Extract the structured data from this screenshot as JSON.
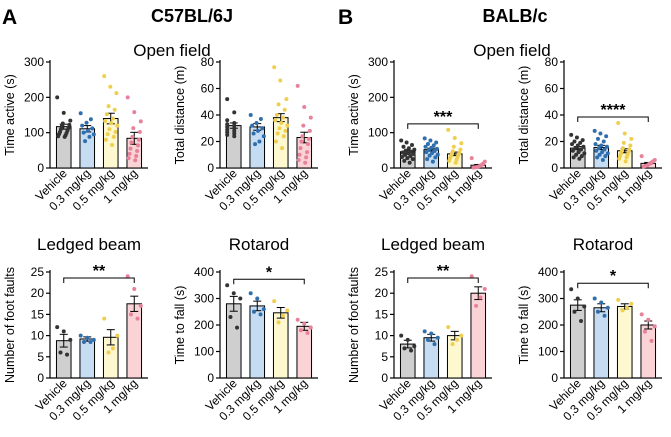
{
  "figure": {
    "panels": [
      {
        "letter": "A",
        "strain": "C57BL/6J"
      },
      {
        "letter": "B",
        "strain": "BALB/c"
      }
    ],
    "groups": [
      "Vehicle",
      "0.3 mg/kg",
      "0.5 mg/kg",
      "1 mg/kg"
    ],
    "group_colors": {
      "fill": [
        "#cfcfcf",
        "#c6dcf3",
        "#fdf8cf",
        "#f9d3d6"
      ],
      "dot": [
        "#333333",
        "#2f6fad",
        "#f0cf4f",
        "#e8829a"
      ]
    },
    "section_titles": {
      "open_field": "Open field"
    }
  },
  "chart_data": [
    {
      "id": "A-time-active",
      "type": "bar",
      "panel": "A",
      "title": "",
      "categories": [
        "Vehicle",
        "0.3 mg/kg",
        "0.5 mg/kg",
        "1 mg/kg"
      ],
      "values": [
        117,
        111,
        140,
        84
      ],
      "sem": [
        7,
        9,
        15,
        17
      ],
      "ylabel": "Time active (s)",
      "ylim": [
        0,
        300
      ],
      "yticks": [
        0,
        100,
        200,
        300
      ],
      "points": [
        [
          200,
          156,
          134,
          126,
          122,
          118,
          113,
          110,
          106,
          102,
          99,
          96,
          93,
          90,
          88
        ],
        [
          155,
          138,
          128,
          120,
          112,
          105,
          100,
          95,
          88,
          76
        ],
        [
          260,
          230,
          212,
          175,
          165,
          152,
          140,
          133,
          127,
          120,
          110,
          102,
          96,
          88,
          80,
          65
        ],
        [
          200,
          158,
          132,
          113,
          102,
          88,
          80,
          72,
          64,
          55,
          48,
          40,
          34,
          28,
          22
        ]
      ],
      "significance": null
    },
    {
      "id": "A-total-distance",
      "type": "bar",
      "panel": "A",
      "title": "",
      "categories": [
        "Vehicle",
        "0.3 mg/kg",
        "0.5 mg/kg",
        "1 mg/kg"
      ],
      "values": [
        32,
        31,
        38,
        23
      ],
      "sem": [
        2,
        2.5,
        3,
        4
      ],
      "ylabel": "Total distance (m)",
      "ylim": [
        0,
        80
      ],
      "yticks": [
        0,
        20,
        40,
        60,
        80
      ],
      "points": [
        [
          52,
          42,
          36,
          34,
          33,
          32,
          31,
          30,
          29,
          28,
          27,
          26,
          25,
          24
        ],
        [
          40,
          37,
          34,
          32,
          30,
          28,
          26,
          24,
          20,
          18
        ],
        [
          76,
          66,
          52,
          48,
          44,
          40,
          38,
          36,
          34,
          32,
          30,
          28,
          26,
          24,
          20,
          15
        ],
        [
          62,
          46,
          38,
          32,
          28,
          24,
          22,
          20,
          18,
          15,
          12,
          10,
          8,
          6,
          4
        ]
      ],
      "significance": null
    },
    {
      "id": "B-time-active",
      "type": "bar",
      "panel": "B",
      "title": "",
      "categories": [
        "Vehicle",
        "0.3 mg/kg",
        "0.5 mg/kg",
        "1 mg/kg"
      ],
      "values": [
        46,
        52,
        40,
        8
      ],
      "sem": [
        4,
        4,
        5,
        2
      ],
      "ylabel": "Time active (s)",
      "ylim": [
        0,
        300
      ],
      "yticks": [
        0,
        100,
        200,
        300
      ],
      "points": [
        [
          78,
          72,
          65,
          60,
          56,
          52,
          49,
          46,
          44,
          42,
          40,
          37,
          34,
          31,
          28,
          25,
          20,
          15
        ],
        [
          84,
          78,
          72,
          68,
          64,
          60,
          57,
          54,
          51,
          48,
          45,
          42,
          38,
          35,
          30,
          25,
          18
        ],
        [
          108,
          85,
          70,
          60,
          52,
          47,
          43,
          40,
          37,
          34,
          31,
          28,
          24,
          20,
          15
        ],
        [
          28,
          18,
          12,
          8,
          5,
          3,
          2,
          1
        ]
      ],
      "significance": {
        "from": 0,
        "to": 3,
        "label": "***"
      }
    },
    {
      "id": "B-total-distance",
      "type": "bar",
      "panel": "B",
      "title": "",
      "categories": [
        "Vehicle",
        "0.3 mg/kg",
        "0.5 mg/kg",
        "1 mg/kg"
      ],
      "values": [
        15,
        15.5,
        13,
        3.5
      ],
      "sem": [
        1.2,
        1.6,
        1.5,
        0.7
      ],
      "ylabel": "Total distance (m)",
      "ylim": [
        0,
        80
      ],
      "yticks": [
        0,
        20,
        40,
        60,
        80
      ],
      "points": [
        [
          25,
          23,
          21,
          20,
          19,
          18,
          17,
          16,
          15,
          14,
          13,
          12,
          11,
          10,
          9,
          8,
          7
        ],
        [
          28,
          26,
          24,
          22,
          20,
          18,
          17,
          16,
          15,
          14,
          13,
          12,
          11,
          10,
          9,
          8,
          6
        ],
        [
          34,
          26,
          22,
          19,
          17,
          15,
          14,
          13,
          12,
          11,
          10,
          9,
          8,
          7,
          5
        ],
        [
          9,
          6,
          5,
          4,
          3,
          2,
          1.5,
          1
        ]
      ],
      "significance": {
        "from": 0,
        "to": 3,
        "label": "****"
      }
    },
    {
      "id": "A-ledged-beam",
      "type": "bar",
      "panel": "A",
      "title": "Ledged beam",
      "categories": [
        "Vehicle",
        "0.3 mg/kg",
        "0.5 mg/kg",
        "1 mg/kg"
      ],
      "values": [
        8.8,
        9.2,
        9.6,
        17.5
      ],
      "sem": [
        1.5,
        0.5,
        1.8,
        1.8
      ],
      "ylabel": "Number of foot faults",
      "ylim": [
        0,
        25
      ],
      "yticks": [
        0,
        5,
        10,
        15,
        20,
        25
      ],
      "points": [
        [
          12,
          11,
          9,
          6,
          5.5
        ],
        [
          10,
          9.5,
          9,
          8.5,
          8.5
        ],
        [
          14,
          10,
          7,
          6
        ],
        [
          24,
          21,
          17,
          15,
          14
        ]
      ],
      "significance": {
        "from": 0,
        "to": 3,
        "label": "**"
      }
    },
    {
      "id": "A-rotarod",
      "type": "bar",
      "panel": "A",
      "title": "Rotarod",
      "categories": [
        "Vehicle",
        "0.3 mg/kg",
        "0.5 mg/kg",
        "1 mg/kg"
      ],
      "values": [
        280,
        272,
        246,
        195
      ],
      "sem": [
        28,
        18,
        20,
        15
      ],
      "ylabel": "Time to fall (s)",
      "ylim": [
        0,
        400
      ],
      "yticks": [
        0,
        100,
        200,
        300,
        400
      ],
      "points": [
        [
          350,
          320,
          300,
          230,
          190
        ],
        [
          320,
          300,
          260,
          250,
          240
        ],
        [
          290,
          255,
          235,
          210
        ],
        [
          220,
          205,
          190,
          180,
          170
        ]
      ],
      "significance": {
        "from": 0,
        "to": 3,
        "label": "*"
      }
    },
    {
      "id": "B-ledged-beam",
      "type": "bar",
      "panel": "B",
      "title": "Ledged beam",
      "categories": [
        "Vehicle",
        "0.3 mg/kg",
        "0.5 mg/kg",
        "1 mg/kg"
      ],
      "values": [
        8,
        9.5,
        10,
        20
      ],
      "sem": [
        0.9,
        0.8,
        1,
        1.5
      ],
      "ylabel": "Number of foot faults",
      "ylim": [
        0,
        25
      ],
      "yticks": [
        0,
        5,
        10,
        15,
        20,
        25
      ],
      "points": [
        [
          10,
          9,
          7.5,
          7,
          6.5
        ],
        [
          11,
          10.5,
          9.5,
          9,
          8
        ],
        [
          12,
          10,
          9,
          8
        ],
        [
          24,
          21,
          19,
          17
        ]
      ],
      "significance": {
        "from": 0,
        "to": 3,
        "label": "**"
      }
    },
    {
      "id": "B-rotarod",
      "type": "bar",
      "panel": "B",
      "title": "Rotarod",
      "categories": [
        "Vehicle",
        "0.3 mg/kg",
        "0.5 mg/kg",
        "1 mg/kg"
      ],
      "values": [
        275,
        265,
        270,
        200
      ],
      "sem": [
        20,
        15,
        10,
        15
      ],
      "ylabel": "Time to fall (s)",
      "ylim": [
        0,
        400
      ],
      "yticks": [
        0,
        100,
        200,
        300,
        400
      ],
      "points": [
        [
          335,
          300,
          270,
          250,
          215
        ],
        [
          300,
          285,
          265,
          250,
          235
        ],
        [
          295,
          280,
          265,
          255
        ],
        [
          240,
          220,
          195,
          175,
          140
        ]
      ],
      "significance": {
        "from": 0,
        "to": 3,
        "label": "*"
      }
    }
  ]
}
